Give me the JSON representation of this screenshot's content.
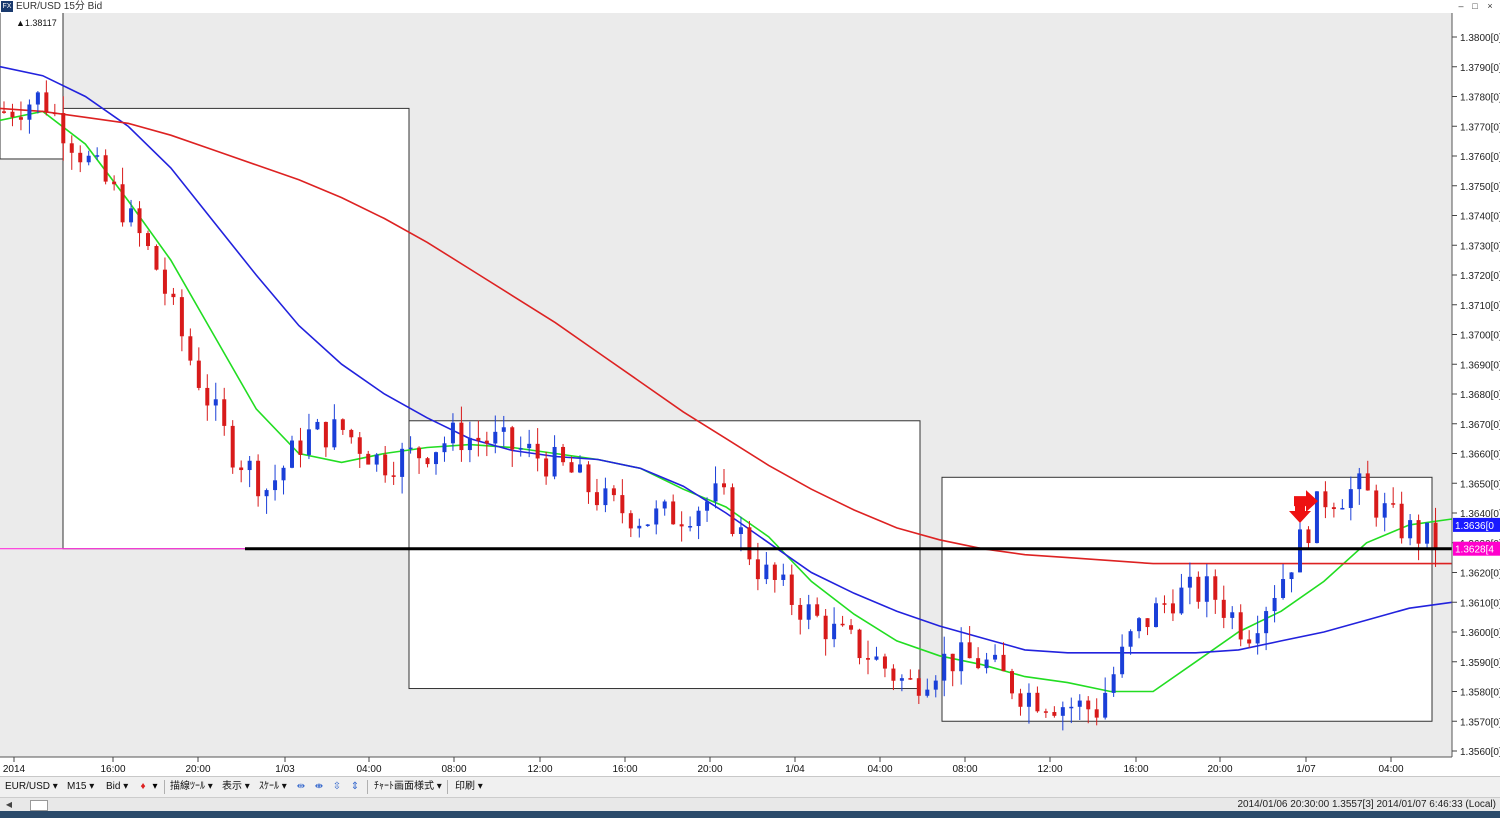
{
  "window": {
    "title": "EUR/USD 15分 Bid",
    "controls": [
      "–",
      "□",
      "×"
    ]
  },
  "chart_data": {
    "type": "candlestick",
    "symbol": "EUR/USD",
    "timeframe": "15分",
    "price_side": "Bid",
    "high_marker_label": "▲1.38117",
    "ylim": [
      1.3555,
      1.3815
    ],
    "y_ticks": [
      "1.3800[0]",
      "1.3790[0]",
      "1.3780[0]",
      "1.3770[0]",
      "1.3760[0]",
      "1.3750[0]",
      "1.3740[0]",
      "1.3730[0]",
      "1.3720[0]",
      "1.3710[0]",
      "1.3700[0]",
      "1.3690[0]",
      "1.3680[0]",
      "1.3670[0]",
      "1.3660[0]",
      "1.3650[0]",
      "1.3640[0]",
      "1.3630[0]",
      "1.3620[0]",
      "1.3610[0]",
      "1.3600[0]",
      "1.3590[0]",
      "1.3580[0]",
      "1.3570[0]",
      "1.3560[0]"
    ],
    "x_ticks": [
      "2014",
      "16:00",
      "20:00",
      "1/03",
      "04:00",
      "08:00",
      "12:00",
      "16:00",
      "20:00",
      "1/04",
      "04:00",
      "08:00",
      "12:00",
      "16:00",
      "20:00",
      "1/07",
      "04:00"
    ],
    "price_labels": [
      {
        "text": "1.3636[0",
        "value": 1.3636,
        "color": "#1a1aff"
      },
      {
        "text": "1.3628[4",
        "value": 1.3628,
        "color": "#ff00cc"
      }
    ],
    "horizontal_line": 1.3628,
    "daily_boxes": [
      {
        "high": 1.3776,
        "low": 1.3628
      },
      {
        "high": 1.3671,
        "low": 1.3581
      },
      {
        "high": 1.3652,
        "low": 1.357
      }
    ],
    "prev_box": {
      "high": 1.3812,
      "low": 1.3759
    },
    "moving_averages": [
      {
        "color": "#22dd22",
        "points": [
          1.3772,
          1.3775,
          1.3764,
          1.3745,
          1.3725,
          1.37,
          1.3675,
          1.366,
          1.3657,
          1.366,
          1.3662,
          1.3663,
          1.3662,
          1.366,
          1.3658,
          1.3655,
          1.3648,
          1.3642,
          1.3632,
          1.3617,
          1.3606,
          1.3597,
          1.3592,
          1.3589,
          1.3585,
          1.3583,
          1.358,
          1.358,
          1.359,
          1.36,
          1.3607,
          1.3617,
          1.363,
          1.3636,
          1.3638
        ]
      },
      {
        "color": "#2222dd",
        "points": [
          1.379,
          1.3787,
          1.378,
          1.377,
          1.3756,
          1.3738,
          1.372,
          1.3703,
          1.369,
          1.368,
          1.3672,
          1.3665,
          1.3661,
          1.3659,
          1.3658,
          1.3655,
          1.3649,
          1.364,
          1.363,
          1.362,
          1.3613,
          1.3607,
          1.3602,
          1.3598,
          1.3594,
          1.3593,
          1.3593,
          1.3593,
          1.3593,
          1.3594,
          1.3597,
          1.36,
          1.3604,
          1.3608,
          1.361
        ]
      },
      {
        "color": "#dd2222",
        "points": [
          1.3776,
          1.3775,
          1.3773,
          1.3771,
          1.3767,
          1.3762,
          1.3757,
          1.3752,
          1.3746,
          1.3739,
          1.3731,
          1.3722,
          1.3713,
          1.3704,
          1.3694,
          1.3684,
          1.3674,
          1.3665,
          1.3656,
          1.3648,
          1.3641,
          1.3635,
          1.3631,
          1.3628,
          1.3626,
          1.3625,
          1.3624,
          1.3623,
          1.3623,
          1.3623,
          1.3623,
          1.3623,
          1.3623,
          1.3623,
          1.3623
        ]
      }
    ],
    "candle_path": [
      1.3775,
      1.378,
      1.3762,
      1.3746,
      1.3724,
      1.369,
      1.3662,
      1.3648,
      1.3666,
      1.3668,
      1.3657,
      1.366,
      1.3666,
      1.3664,
      1.366,
      1.3654,
      1.3643,
      1.3638,
      1.364,
      1.3646,
      1.3622,
      1.361,
      1.36,
      1.3592,
      1.3582,
      1.3591,
      1.359,
      1.358,
      1.3576,
      1.3574,
      1.36,
      1.3612,
      1.3614,
      1.36,
      1.362,
      1.3645,
      1.3648,
      1.3636,
      1.363
    ],
    "signal_arrows": [
      {
        "direction": "down",
        "value": 1.364
      },
      {
        "direction": "right",
        "value": 1.3644
      }
    ]
  },
  "toolbar": {
    "symbol": "EUR/USD",
    "timeframe": "M15",
    "side": "Bid",
    "draw_tool": "描線ﾂｰﾙ",
    "display": "表示",
    "scale": "ｽｹｰﾙ",
    "chart_style": "ﾁｬｰﾄ画面様式",
    "print": "印刷"
  },
  "status": {
    "text": "2014/01/06 20:30:00  1.3557[3]  2014/01/07 6:46:33 (Local)"
  }
}
